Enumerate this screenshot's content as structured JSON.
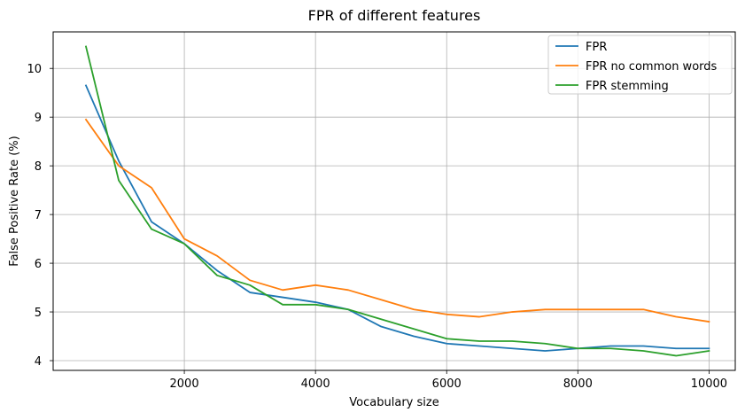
{
  "chart_data": {
    "type": "line",
    "title": "FPR of different features",
    "xlabel": "Vocabulary size",
    "ylabel": "False Positive Rate (%)",
    "xlim": [
      0,
      10400
    ],
    "ylim": [
      3.8,
      10.75
    ],
    "xticks": [
      2000,
      4000,
      6000,
      8000,
      10000
    ],
    "yticks": [
      4,
      5,
      6,
      7,
      8,
      9,
      10
    ],
    "grid": true,
    "legend_position": "top-right",
    "x": [
      500,
      1000,
      1500,
      2000,
      2500,
      3000,
      3500,
      4000,
      4500,
      5000,
      5500,
      6000,
      6500,
      7000,
      7500,
      8000,
      8500,
      9000,
      9500,
      10000
    ],
    "series": [
      {
        "name": "FPR",
        "color": "#1f77b4",
        "values": [
          9.65,
          8.1,
          6.85,
          6.4,
          5.85,
          5.4,
          5.3,
          5.2,
          5.05,
          4.7,
          4.5,
          4.35,
          4.3,
          4.25,
          4.2,
          4.25,
          4.3,
          4.3,
          4.25,
          4.25
        ]
      },
      {
        "name": "FPR no common words",
        "color": "#ff7f0e",
        "values": [
          8.95,
          8.0,
          7.55,
          6.5,
          6.15,
          5.65,
          5.45,
          5.55,
          5.45,
          5.25,
          5.05,
          4.95,
          4.9,
          5.0,
          5.05,
          5.05,
          5.05,
          5.05,
          4.9,
          4.8
        ]
      },
      {
        "name": "FPR stemming",
        "color": "#2ca02c",
        "values": [
          10.45,
          7.7,
          6.7,
          6.4,
          5.75,
          5.55,
          5.15,
          5.15,
          5.05,
          4.85,
          4.65,
          4.45,
          4.4,
          4.4,
          4.35,
          4.25,
          4.25,
          4.2,
          4.1,
          4.2
        ]
      }
    ]
  }
}
